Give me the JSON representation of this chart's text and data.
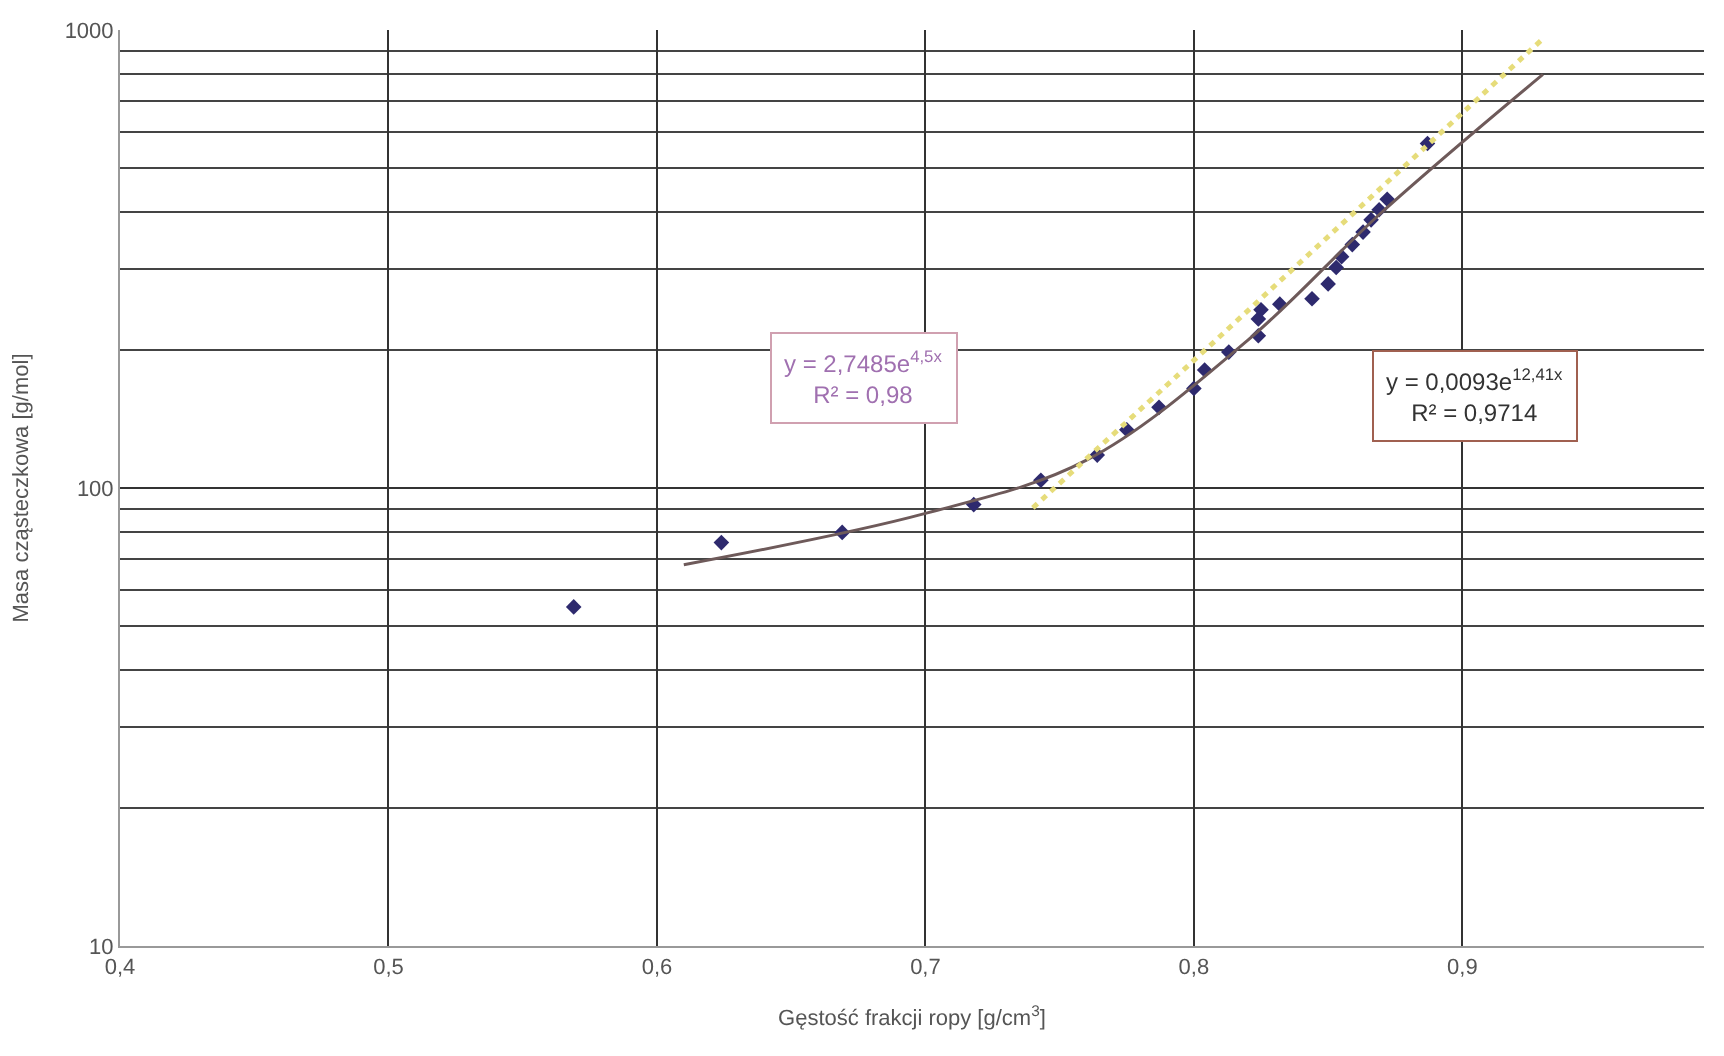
{
  "chart_data": {
    "type": "scatter",
    "xlabel": "Gęstość frakcji ropy [g/cm$^{3}$]",
    "ylabel": "Masa cząsteczkowa [g/mol]",
    "x": [
      0.569,
      0.624,
      0.669,
      0.718,
      0.743,
      0.764,
      0.775,
      0.787,
      0.8,
      0.804,
      0.813,
      0.824,
      0.824,
      0.825,
      0.832,
      0.844,
      0.85,
      0.853,
      0.855,
      0.859,
      0.863,
      0.866,
      0.869,
      0.872,
      0.887
    ],
    "series": [
      {
        "color": "#2e2a6e",
        "marker": "diamond",
        "values": [
          55,
          76,
          80,
          92,
          104,
          118,
          134,
          150,
          165,
          181,
          198,
          215,
          234,
          245,
          252,
          259,
          279,
          303,
          320,
          340,
          362,
          385,
          405,
          427,
          565
        ]
      },
      {
        "type": "line",
        "color": "#6e5a5a",
        "line_style": "solid",
        "marker": "none",
        "x": [
          0.61,
          0.7,
          0.76,
          0.82,
          0.87,
          0.93
        ],
        "values": [
          68,
          88,
          115,
          210,
          400,
          800
        ]
      },
      {
        "type": "line",
        "color": "#e6dc7a",
        "line_style": "dotted",
        "marker": "none",
        "x": [
          0.74,
          0.8,
          0.85,
          0.9,
          0.93
        ],
        "values": [
          90.5,
          190,
          354,
          659,
          957
        ]
      }
    ],
    "annotations": [
      "y = 2,7485e$^{4,5x}$\nR² = 0,98",
      "y = 0,0093e$^{12,41x}$\nR² = 0,9714"
    ],
    "xlim": [
      0.4,
      0.99
    ],
    "xticks": [
      {
        "value": 0.4,
        "label": "0,4"
      },
      {
        "value": 0.5,
        "label": "0,5"
      },
      {
        "value": 0.6,
        "label": "0,6"
      },
      {
        "value": 0.7,
        "label": "0,7"
      },
      {
        "value": 0.8,
        "label": "0,8"
      },
      {
        "value": 0.9,
        "label": "0,9"
      }
    ],
    "ylim": [
      10,
      1000
    ],
    "yticks": [
      10,
      100,
      1000
    ],
    "log": "y",
    "grid": true
  }
}
